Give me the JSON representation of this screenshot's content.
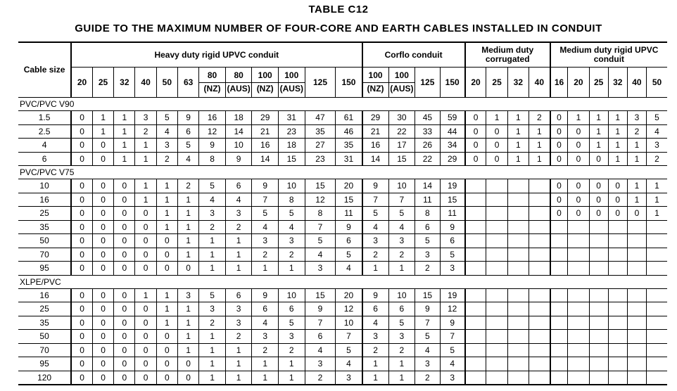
{
  "title": "TABLE C12",
  "subtitle": "GUIDE TO THE MAXIMUM NUMBER OF FOUR-CORE AND EARTH CABLES INSTALLED IN CONDUIT",
  "header": {
    "cable_size": "Cable size",
    "groups": [
      {
        "label": "Heavy duty rigid UPVC conduit",
        "span": 12
      },
      {
        "label": "Corflo conduit",
        "span": 4
      },
      {
        "label": "Medium duty corrugated",
        "span": 4
      },
      {
        "label": "Medium duty rigid UPVC conduit",
        "span": 6
      }
    ],
    "columns": [
      {
        "top": "20",
        "bottom": ""
      },
      {
        "top": "25",
        "bottom": ""
      },
      {
        "top": "32",
        "bottom": ""
      },
      {
        "top": "40",
        "bottom": ""
      },
      {
        "top": "50",
        "bottom": ""
      },
      {
        "top": "63",
        "bottom": ""
      },
      {
        "top": "80",
        "bottom": "(NZ)"
      },
      {
        "top": "80",
        "bottom": "(AUS)"
      },
      {
        "top": "100",
        "bottom": "(NZ)"
      },
      {
        "top": "100",
        "bottom": "(AUS)"
      },
      {
        "top": "125",
        "bottom": ""
      },
      {
        "top": "150",
        "bottom": ""
      },
      {
        "top": "100",
        "bottom": "(NZ)"
      },
      {
        "top": "100",
        "bottom": "(AUS)"
      },
      {
        "top": "125",
        "bottom": ""
      },
      {
        "top": "150",
        "bottom": ""
      },
      {
        "top": "20",
        "bottom": ""
      },
      {
        "top": "25",
        "bottom": ""
      },
      {
        "top": "32",
        "bottom": ""
      },
      {
        "top": "40",
        "bottom": ""
      },
      {
        "top": "16",
        "bottom": ""
      },
      {
        "top": "20",
        "bottom": ""
      },
      {
        "top": "25",
        "bottom": ""
      },
      {
        "top": "32",
        "bottom": ""
      },
      {
        "top": "40",
        "bottom": ""
      },
      {
        "top": "50",
        "bottom": ""
      }
    ]
  },
  "sections": [
    {
      "name": "PVC/PVC V90",
      "rows": [
        {
          "size": "1.5",
          "values": [
            "0",
            "1",
            "1",
            "3",
            "5",
            "9",
            "16",
            "18",
            "29",
            "31",
            "47",
            "61",
            "29",
            "30",
            "45",
            "59",
            "0",
            "1",
            "1",
            "2",
            "0",
            "1",
            "1",
            "1",
            "3",
            "5"
          ]
        },
        {
          "size": "2.5",
          "values": [
            "0",
            "1",
            "1",
            "2",
            "4",
            "6",
            "12",
            "14",
            "21",
            "23",
            "35",
            "46",
            "21",
            "22",
            "33",
            "44",
            "0",
            "0",
            "1",
            "1",
            "0",
            "0",
            "1",
            "1",
            "2",
            "4"
          ]
        },
        {
          "size": "4",
          "values": [
            "0",
            "0",
            "1",
            "1",
            "3",
            "5",
            "9",
            "10",
            "16",
            "18",
            "27",
            "35",
            "16",
            "17",
            "26",
            "34",
            "0",
            "0",
            "1",
            "1",
            "0",
            "0",
            "1",
            "1",
            "1",
            "3"
          ]
        },
        {
          "size": "6",
          "values": [
            "0",
            "0",
            "1",
            "1",
            "2",
            "4",
            "8",
            "9",
            "14",
            "15",
            "23",
            "31",
            "14",
            "15",
            "22",
            "29",
            "0",
            "0",
            "1",
            "1",
            "0",
            "0",
            "0",
            "1",
            "1",
            "2"
          ]
        }
      ]
    },
    {
      "name": "PVC/PVC V75",
      "rows": [
        {
          "size": "10",
          "values": [
            "0",
            "0",
            "0",
            "1",
            "1",
            "2",
            "5",
            "6",
            "9",
            "10",
            "15",
            "20",
            "9",
            "10",
            "14",
            "19",
            "",
            "",
            "",
            "",
            "0",
            "0",
            "0",
            "0",
            "1",
            "1"
          ]
        },
        {
          "size": "16",
          "values": [
            "0",
            "0",
            "0",
            "1",
            "1",
            "1",
            "4",
            "4",
            "7",
            "8",
            "12",
            "15",
            "7",
            "7",
            "11",
            "15",
            "",
            "",
            "",
            "",
            "0",
            "0",
            "0",
            "0",
            "1",
            "1"
          ]
        },
        {
          "size": "25",
          "values": [
            "0",
            "0",
            "0",
            "0",
            "1",
            "1",
            "3",
            "3",
            "5",
            "5",
            "8",
            "11",
            "5",
            "5",
            "8",
            "11",
            "",
            "",
            "",
            "",
            "0",
            "0",
            "0",
            "0",
            "0",
            "1"
          ]
        },
        {
          "size": "35",
          "values": [
            "0",
            "0",
            "0",
            "0",
            "1",
            "1",
            "2",
            "2",
            "4",
            "4",
            "7",
            "9",
            "4",
            "4",
            "6",
            "9",
            "",
            "",
            "",
            "",
            "",
            "",
            "",
            "",
            "",
            ""
          ]
        },
        {
          "size": "50",
          "values": [
            "0",
            "0",
            "0",
            "0",
            "0",
            "1",
            "1",
            "1",
            "3",
            "3",
            "5",
            "6",
            "3",
            "3",
            "5",
            "6",
            "",
            "",
            "",
            "",
            "",
            "",
            "",
            "",
            "",
            ""
          ]
        },
        {
          "size": "70",
          "values": [
            "0",
            "0",
            "0",
            "0",
            "0",
            "1",
            "1",
            "1",
            "2",
            "2",
            "4",
            "5",
            "2",
            "2",
            "3",
            "5",
            "",
            "",
            "",
            "",
            "",
            "",
            "",
            "",
            "",
            ""
          ]
        },
        {
          "size": "95",
          "values": [
            "0",
            "0",
            "0",
            "0",
            "0",
            "0",
            "1",
            "1",
            "1",
            "1",
            "3",
            "4",
            "1",
            "1",
            "2",
            "3",
            "",
            "",
            "",
            "",
            "",
            "",
            "",
            "",
            "",
            ""
          ]
        }
      ]
    },
    {
      "name": "XLPE/PVC",
      "rows": [
        {
          "size": "16",
          "values": [
            "0",
            "0",
            "0",
            "1",
            "1",
            "3",
            "5",
            "6",
            "9",
            "10",
            "15",
            "20",
            "9",
            "10",
            "15",
            "19",
            "",
            "",
            "",
            "",
            "",
            "",
            "",
            "",
            "",
            ""
          ]
        },
        {
          "size": "25",
          "values": [
            "0",
            "0",
            "0",
            "0",
            "1",
            "1",
            "3",
            "3",
            "6",
            "6",
            "9",
            "12",
            "6",
            "6",
            "9",
            "12",
            "",
            "",
            "",
            "",
            "",
            "",
            "",
            "",
            "",
            ""
          ]
        },
        {
          "size": "35",
          "values": [
            "0",
            "0",
            "0",
            "0",
            "1",
            "1",
            "2",
            "3",
            "4",
            "5",
            "7",
            "10",
            "4",
            "5",
            "7",
            "9",
            "",
            "",
            "",
            "",
            "",
            "",
            "",
            "",
            "",
            ""
          ]
        },
        {
          "size": "50",
          "values": [
            "0",
            "0",
            "0",
            "0",
            "0",
            "1",
            "1",
            "2",
            "3",
            "3",
            "6",
            "7",
            "3",
            "3",
            "5",
            "7",
            "",
            "",
            "",
            "",
            "",
            "",
            "",
            "",
            "",
            ""
          ]
        },
        {
          "size": "70",
          "values": [
            "0",
            "0",
            "0",
            "0",
            "0",
            "1",
            "1",
            "1",
            "2",
            "2",
            "4",
            "5",
            "2",
            "2",
            "4",
            "5",
            "",
            "",
            "",
            "",
            "",
            "",
            "",
            "",
            "",
            ""
          ]
        },
        {
          "size": "95",
          "values": [
            "0",
            "0",
            "0",
            "0",
            "0",
            "0",
            "1",
            "1",
            "1",
            "1",
            "3",
            "4",
            "1",
            "1",
            "3",
            "4",
            "",
            "",
            "",
            "",
            "",
            "",
            "",
            "",
            "",
            ""
          ]
        },
        {
          "size": "120",
          "values": [
            "0",
            "0",
            "0",
            "0",
            "0",
            "0",
            "1",
            "1",
            "1",
            "1",
            "2",
            "3",
            "1",
            "1",
            "2",
            "3",
            "",
            "",
            "",
            "",
            "",
            "",
            "",
            "",
            "",
            ""
          ]
        }
      ]
    }
  ]
}
